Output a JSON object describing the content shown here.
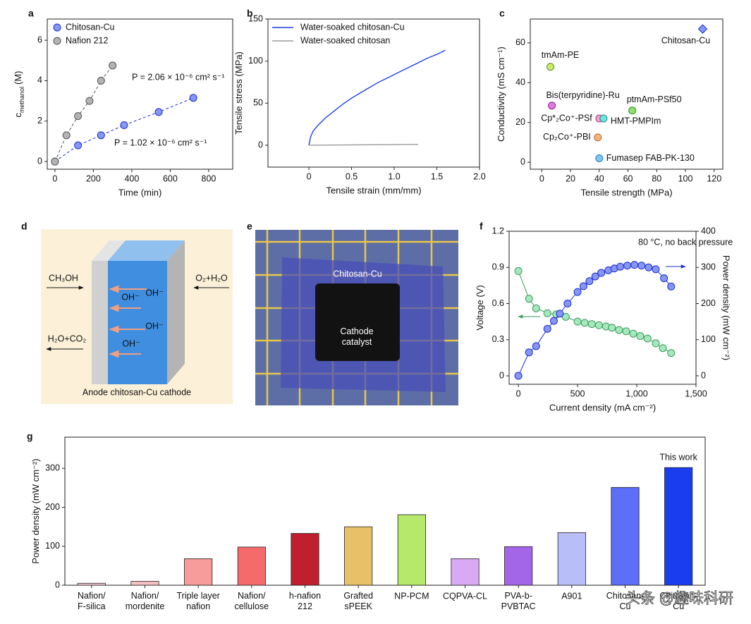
{
  "panel_labels": [
    "a",
    "b",
    "c",
    "d",
    "e",
    "f",
    "g"
  ],
  "chart_data": [
    {
      "type": "scatter",
      "xlabel": "Time (min)",
      "ylabel": "c",
      "ylabel_sub": "methanol",
      "ylabel_unit": "(M)",
      "xlim": [
        -40,
        925
      ],
      "xticks": [
        0,
        200,
        400,
        600,
        800
      ],
      "ylim": [
        -0.38,
        7.05
      ],
      "yticks": [
        0,
        2,
        4,
        6
      ],
      "legend": "upper left",
      "series": [
        {
          "name": "Chitosan-Cu",
          "color": "#8696f2",
          "edgecolor": "#1c2fd0",
          "line": "dashed",
          "x": [
            0,
            120,
            240,
            360,
            540,
            720
          ],
          "values": [
            0,
            0.8,
            1.3,
            1.8,
            2.45,
            3.15
          ]
        },
        {
          "name": "Nafion 212",
          "color": "#b4b4b4",
          "edgecolor": "#555555",
          "line": "dashed",
          "x": [
            0,
            60,
            120,
            180,
            240,
            300
          ],
          "values": [
            0,
            1.3,
            2.25,
            3.0,
            4.0,
            4.75
          ]
        }
      ],
      "annotations": [
        "P = 2.06 × 10⁻⁶ cm² s⁻¹",
        "P = 1.02 × 10⁻⁶ cm² s⁻¹"
      ]
    },
    {
      "type": "line",
      "xlabel": "Tensile strain (mm/mm)",
      "ylabel": "Tensile stress (MPa)",
      "xlim": [
        -0.48,
        2.0
      ],
      "xticks": [
        0,
        0.5,
        {
          "value": 1,
          "label": "1.0"
        },
        1.5,
        {
          "value": 2,
          "label": "2.0"
        }
      ],
      "ylim": [
        -26,
        150
      ],
      "yticks": [
        0,
        50,
        100,
        150
      ],
      "legend": "upper left",
      "series": [
        {
          "name": "Water-soaked chitosan-Cu",
          "color": "#1f3fe0",
          "x": [
            0,
            0.02,
            0.05,
            0.1,
            0.2,
            0.3,
            0.4,
            0.5,
            0.6,
            0.7,
            0.8,
            0.9,
            1.0,
            1.1,
            1.2,
            1.3,
            1.4,
            1.5,
            1.6
          ],
          "values": [
            0,
            10,
            17,
            23,
            33,
            41,
            49,
            56,
            62,
            68,
            74,
            79,
            84,
            89,
            94,
            99,
            104,
            108,
            113
          ]
        },
        {
          "name": "Water-soaked chitosan",
          "color": "#999999",
          "x": [
            0,
            1.28
          ],
          "values": [
            0,
            1
          ]
        }
      ]
    },
    {
      "type": "scatter",
      "xlabel": "Tensile strength (MPa)",
      "ylabel": "Conductivity (mS cm⁻¹)",
      "point_labels": true,
      "xlim": [
        -8,
        126
      ],
      "xticks": [
        0,
        20,
        40,
        60,
        80,
        100,
        120
      ],
      "ylim": [
        -3.5,
        72
      ],
      "yticks": [
        0,
        20,
        40,
        60
      ],
      "series": [
        {
          "name": "tmAm-PE",
          "color": "#c9ec6a",
          "edgecolor": "#5a8a20",
          "x": [
            6
          ],
          "values": [
            48
          ]
        },
        {
          "name": "Bis(terpyridine)-Ru",
          "color": "#e27ae6",
          "edgecolor": "#8a2090",
          "x": [
            7
          ],
          "values": [
            28.5
          ]
        },
        {
          "name": "Cp*₂Co⁺-PSf",
          "color": "#f4a0c8",
          "edgecolor": "#b04080",
          "x": [
            40
          ],
          "values": [
            22
          ]
        },
        {
          "name": "HMT-PMPIm",
          "color": "#6fe6e0",
          "edgecolor": "#208a88",
          "x": [
            43
          ],
          "values": [
            22
          ]
        },
        {
          "name": "ptmAm-PSf50",
          "color": "#8ce06a",
          "edgecolor": "#3a8a20",
          "x": [
            63
          ],
          "values": [
            26
          ]
        },
        {
          "name": "Cp₂Co⁺-PBI",
          "color": "#f7b27a",
          "edgecolor": "#b06a30",
          "x": [
            39
          ],
          "values": [
            12.5
          ]
        },
        {
          "name": "Fumasep FAB-PK-130",
          "color": "#7ac8f2",
          "edgecolor": "#2a7ab0",
          "x": [
            40
          ],
          "values": [
            2
          ]
        },
        {
          "name": "Chitosan-Cu",
          "color": "#8696f2",
          "edgecolor": "#1c2fd0",
          "marker": "diamond",
          "x": [
            112
          ],
          "values": [
            67
          ]
        }
      ]
    },
    {
      "type": "line",
      "xlabel": "Current density (mA cm⁻²)",
      "ylabel": "Voltage (V)",
      "y2label": "Power density (mW cm⁻²)",
      "xlim": [
        -78,
        1500
      ],
      "xticks": [
        0,
        500,
        {
          "value": 1000,
          "label": "1,000"
        },
        {
          "value": 1500,
          "label": "1,500"
        }
      ],
      "ylim": [
        -0.07,
        1.2
      ],
      "yticks": [
        0,
        0.3,
        0.6,
        0.9,
        1.2
      ],
      "y2lim": [
        -23.4,
        400
      ],
      "y2ticks": [
        0,
        100,
        200,
        300,
        400
      ],
      "annotations": [
        "80 °C, no back pressure"
      ],
      "series": [
        {
          "name": "Voltage",
          "color": "#a6e8bd",
          "edgecolor": "#3a9a5a",
          "marker": "circle",
          "x": [
            0,
            90,
            150,
            245,
            320,
            400,
            500,
            560,
            620,
            680,
            740,
            790,
            850,
            910,
            970,
            1030,
            1090,
            1160,
            1220,
            1290
          ],
          "values": [
            0.87,
            0.64,
            0.56,
            0.52,
            0.51,
            0.49,
            0.45,
            0.44,
            0.43,
            0.42,
            0.41,
            0.4,
            0.38,
            0.37,
            0.35,
            0.33,
            0.31,
            0.27,
            0.23,
            0.19
          ]
        },
        {
          "name": "Power density",
          "axis": "y2",
          "color": "#8696f2",
          "edgecolor": "#1c2fd0",
          "marker": "circle",
          "x": [
            0,
            90,
            150,
            245,
            300,
            350,
            415,
            500,
            550,
            600,
            650,
            700,
            760,
            810,
            860,
            920,
            980,
            1040,
            1100,
            1160,
            1230,
            1290
          ],
          "values": [
            0,
            65,
            82,
            130,
            152,
            172,
            200,
            232,
            248,
            262,
            275,
            285,
            292,
            297,
            302,
            305,
            307,
            305,
            300,
            295,
            270,
            247
          ]
        }
      ]
    },
    {
      "type": "bar",
      "ylabel": "Power density (mW cm⁻²)",
      "ylim": [
        0,
        380
      ],
      "yticks": [
        0,
        100,
        200,
        300
      ],
      "categories": [
        "Nafion/\nF-silica",
        "Nafion/\nmordenite",
        "Triple layer\nnafion",
        "Nafion/\ncellulose",
        "h-nafion\n212",
        "Grafted\nsPEEK",
        "NP-PCM",
        "CQPVA-CL",
        "PVA-b-\nPVBTAC",
        "A901",
        "Chitosan-\nCu",
        "Chitosan-\nCu"
      ],
      "values": [
        5,
        10,
        68,
        98,
        133,
        150,
        181,
        68,
        99,
        135,
        251,
        302
      ],
      "colors": [
        "#f7c6d0",
        "#f6c0c0",
        "#f79b9b",
        "#f56b6b",
        "#c0202e",
        "#e8c068",
        "#b6e86c",
        "#d9aaf4",
        "#a366e8",
        "#b8bff8",
        "#5d6ef8",
        "#1a3df0"
      ],
      "annotation": "This work"
    }
  ],
  "diagram": {
    "left_in": "CH₃OH",
    "right_in": "O₂+H₂O",
    "ions": [
      "OH⁻",
      "OH⁻",
      "OH⁻",
      "OH⁻"
    ],
    "left_out": "H₂O+CO₂",
    "caption": "Anode chitosan-Cu cathode"
  },
  "photo": {
    "membrane_label": "Chitosan-Cu",
    "catalyst_label": "Cathode\ncatalyst"
  },
  "watermark": "头条 @趣味科研"
}
